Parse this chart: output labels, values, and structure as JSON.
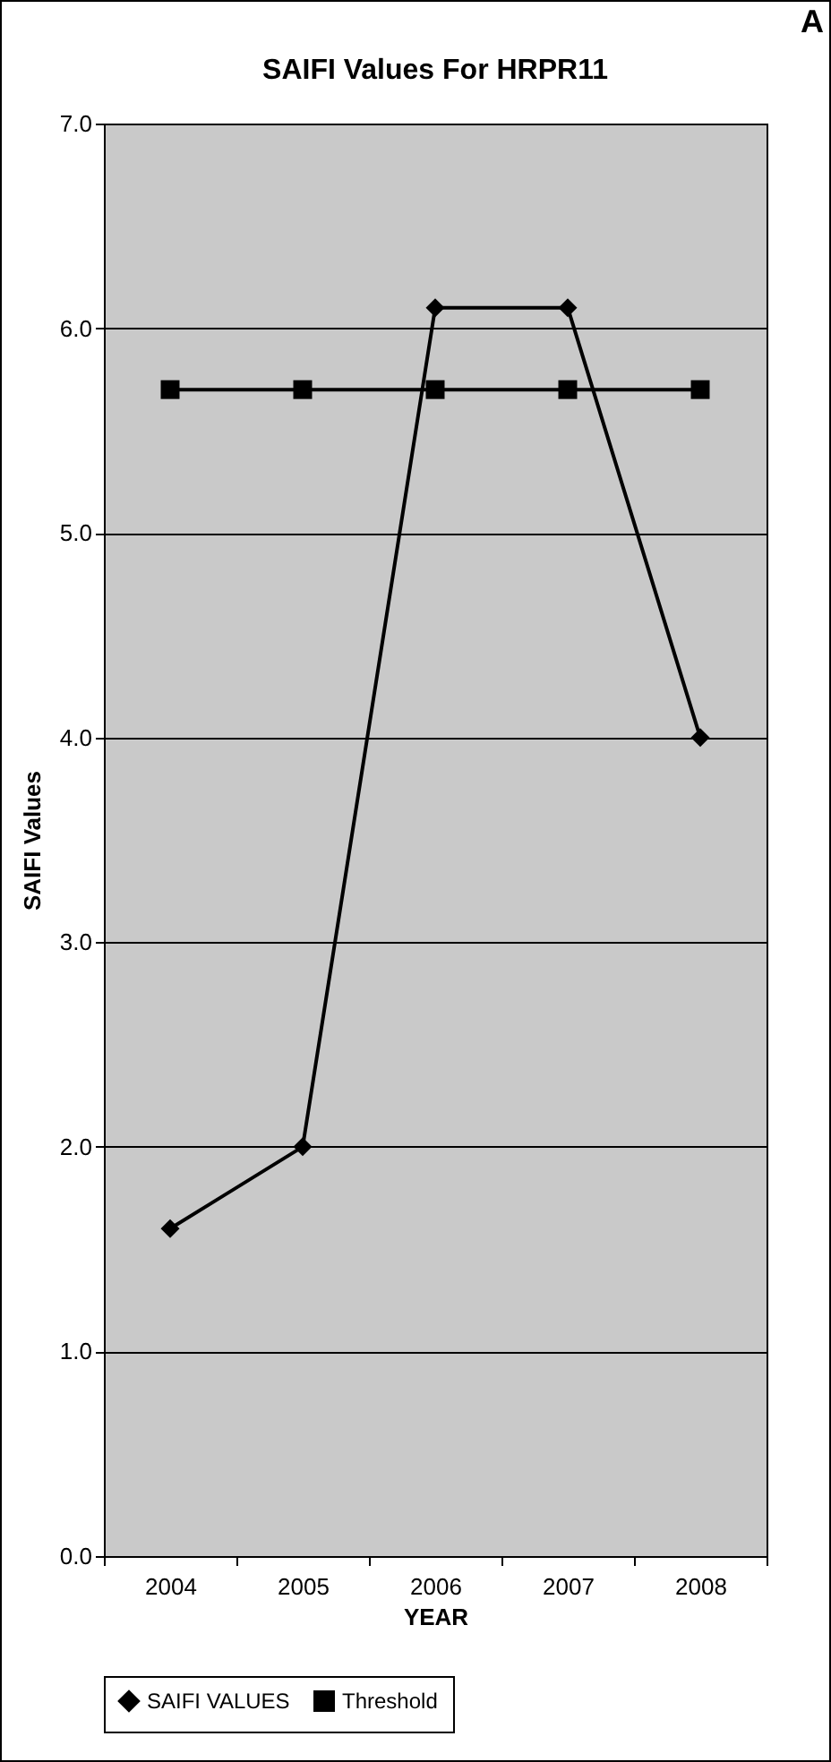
{
  "chart_data": {
    "type": "line",
    "title": "SAIFI Values For HRPR11",
    "xlabel": "YEAR",
    "ylabel": "SAIFI Values",
    "categories": [
      "2004",
      "2005",
      "2006",
      "2007",
      "2008"
    ],
    "series": [
      {
        "name": "SAIFI VALUES",
        "color": "#000000",
        "marker": "diamond",
        "values": [
          1.6,
          2.0,
          6.1,
          6.1,
          4.0
        ]
      },
      {
        "name": "Threshold",
        "color": "#000000",
        "marker": "square",
        "values": [
          5.7,
          5.7,
          5.7,
          5.7,
          5.7
        ]
      }
    ],
    "ylim": [
      0,
      7
    ],
    "yticks": [
      {
        "value": 0,
        "label": "0.0"
      },
      {
        "value": 1,
        "label": "1.0"
      },
      {
        "value": 2,
        "label": "2.0"
      },
      {
        "value": 3,
        "label": "3.0"
      },
      {
        "value": 4,
        "label": "4.0"
      },
      {
        "value": 5,
        "label": "5.0"
      },
      {
        "value": 6,
        "label": "6.0"
      },
      {
        "value": 7,
        "label": "7.0"
      }
    ],
    "grid": "y",
    "legend": "bottom",
    "annotations": [
      "A"
    ]
  }
}
